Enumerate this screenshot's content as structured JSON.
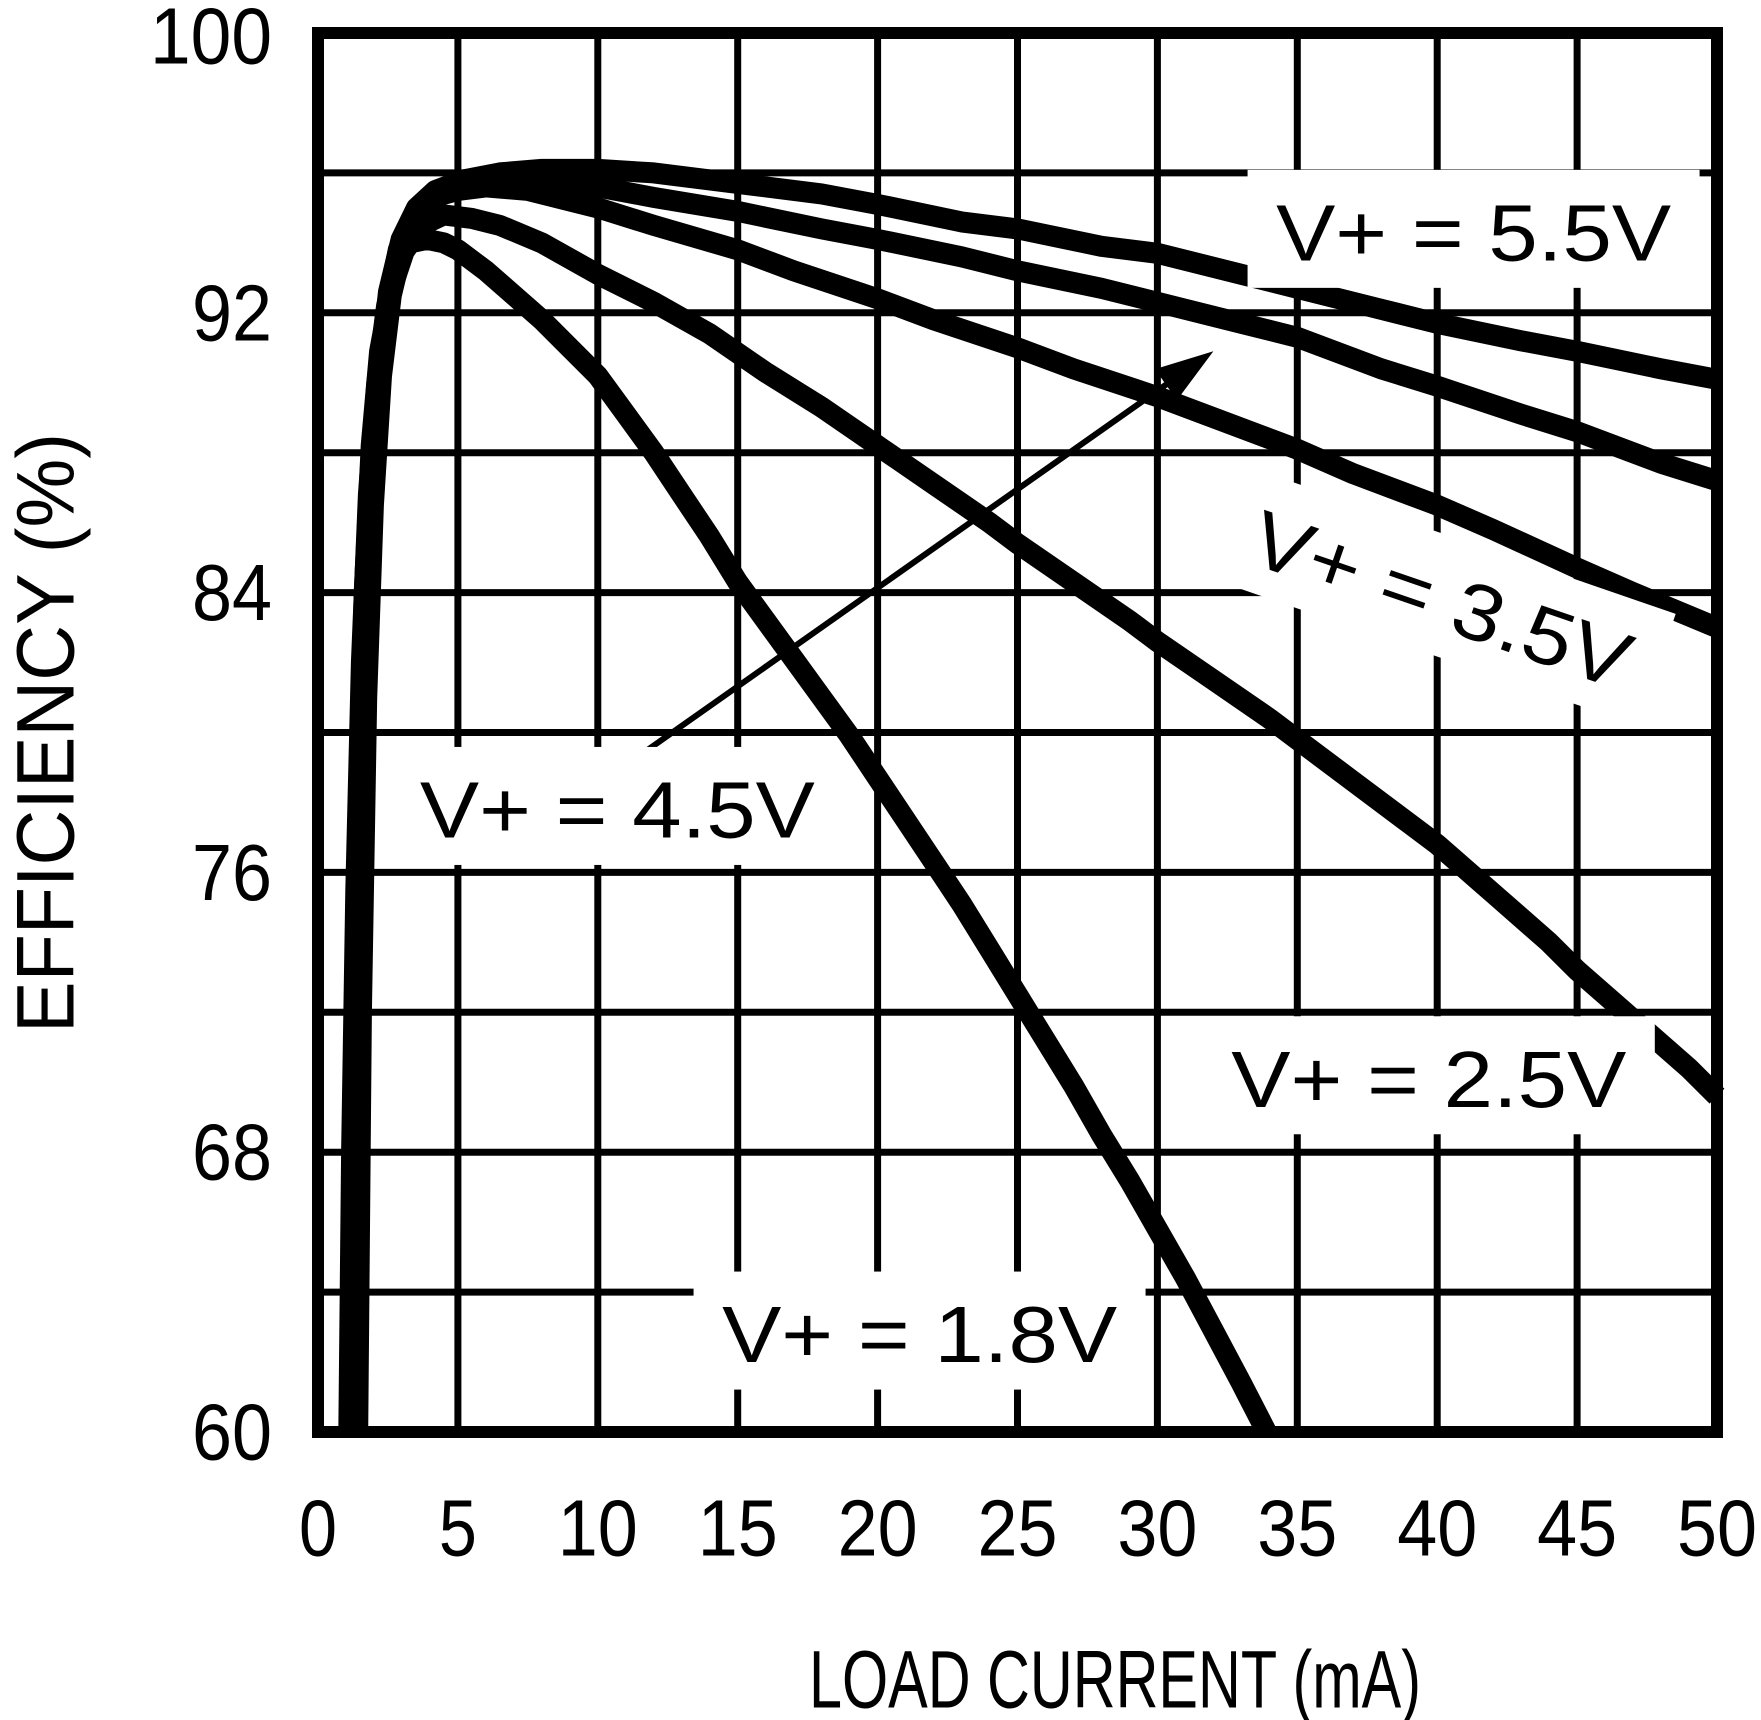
{
  "page": {
    "background": "#ffffff",
    "ink": "#000000"
  },
  "chart_data": {
    "type": "line",
    "title": "",
    "xlabel": "LOAD CURRENT (mA)",
    "ylabel": "EFFICIENCY (%)",
    "xlim": [
      0,
      50
    ],
    "ylim": [
      60,
      100
    ],
    "x_ticks": [
      0,
      5,
      10,
      15,
      20,
      25,
      30,
      35,
      40,
      45,
      50
    ],
    "x_grid_step": 5,
    "y_grid_step": 4,
    "y_tick_labels": [
      100,
      92,
      84,
      76,
      68,
      60
    ],
    "grid": "on",
    "legend_position": "inline-annotations",
    "series": [
      {
        "id": "v18",
        "name": "V+ = 1.8V",
        "points": [
          [
            1.1,
            60
          ],
          [
            1.2,
            68
          ],
          [
            1.35,
            75.5
          ],
          [
            1.55,
            82
          ],
          [
            1.8,
            86.8
          ],
          [
            2.1,
            90.0
          ],
          [
            2.45,
            92.2
          ],
          [
            2.85,
            93.5
          ],
          [
            3.3,
            94.0
          ],
          [
            3.9,
            94.1
          ],
          [
            4.5,
            94.0
          ],
          [
            5,
            93.8
          ],
          [
            6,
            93.2
          ],
          [
            7,
            92.5
          ],
          [
            8,
            91.8
          ],
          [
            9,
            91.0
          ],
          [
            10,
            90.2
          ],
          [
            11,
            89.1
          ],
          [
            12,
            88.0
          ],
          [
            13,
            86.8
          ],
          [
            14,
            85.6
          ],
          [
            15,
            84.3
          ],
          [
            16,
            83.2
          ],
          [
            17,
            82.1
          ],
          [
            18,
            81.0
          ],
          [
            19,
            79.9
          ],
          [
            20,
            78.7
          ],
          [
            21,
            77.5
          ],
          [
            22,
            76.3
          ],
          [
            23,
            75.1
          ],
          [
            24,
            73.8
          ],
          [
            25,
            72.5
          ],
          [
            26,
            71.2
          ],
          [
            27,
            69.9
          ],
          [
            28,
            68.5
          ],
          [
            29,
            67.2
          ],
          [
            30,
            65.8
          ],
          [
            31,
            64.4
          ],
          [
            32,
            62.9
          ],
          [
            33,
            61.4
          ],
          [
            33.9,
            60
          ]
        ]
      },
      {
        "id": "v25",
        "name": "V+ = 2.5V",
        "points": [
          [
            1.15,
            60
          ],
          [
            1.27,
            70
          ],
          [
            1.45,
            78
          ],
          [
            1.65,
            84
          ],
          [
            1.9,
            88.2
          ],
          [
            2.2,
            90.9
          ],
          [
            2.6,
            92.6
          ],
          [
            3.1,
            93.8
          ],
          [
            3.7,
            94.5
          ],
          [
            4.5,
            94.8
          ],
          [
            5.5,
            94.7
          ],
          [
            6.5,
            94.5
          ],
          [
            8,
            94.0
          ],
          [
            10,
            93.1
          ],
          [
            12,
            92.3
          ],
          [
            14,
            91.4
          ],
          [
            16,
            90.3
          ],
          [
            18,
            89.3
          ],
          [
            20,
            88.2
          ],
          [
            22,
            87.1
          ],
          [
            24,
            86.0
          ],
          [
            25,
            85.4
          ],
          [
            27,
            84.3
          ],
          [
            29,
            83.2
          ],
          [
            30,
            82.6
          ],
          [
            32,
            81.5
          ],
          [
            34,
            80.4
          ],
          [
            35,
            79.8
          ],
          [
            37,
            78.6
          ],
          [
            39,
            77.4
          ],
          [
            40,
            76.8
          ],
          [
            42,
            75.4
          ],
          [
            44,
            74.0
          ],
          [
            45,
            73.2
          ],
          [
            47,
            71.8
          ],
          [
            49,
            70.4
          ],
          [
            50,
            69.6
          ]
        ]
      },
      {
        "id": "v35",
        "name": "V+ = 3.5V",
        "points": [
          [
            1.22,
            60
          ],
          [
            1.35,
            71
          ],
          [
            1.55,
            80
          ],
          [
            1.78,
            85.5
          ],
          [
            2.07,
            89.3
          ],
          [
            2.42,
            92.0
          ],
          [
            2.87,
            93.8
          ],
          [
            3.42,
            94.8
          ],
          [
            4.1,
            95.3
          ],
          [
            5,
            95.5
          ],
          [
            6,
            95.6
          ],
          [
            7.5,
            95.5
          ],
          [
            9,
            95.2
          ],
          [
            10,
            95.0
          ],
          [
            12,
            94.5
          ],
          [
            15,
            93.8
          ],
          [
            17,
            93.2
          ],
          [
            20,
            92.4
          ],
          [
            22,
            91.8
          ],
          [
            25,
            91.0
          ],
          [
            27,
            90.4
          ],
          [
            30,
            89.6
          ],
          [
            32,
            89.0
          ],
          [
            35,
            88.1
          ],
          [
            37,
            87.4
          ],
          [
            40,
            86.5
          ],
          [
            42,
            85.8
          ],
          [
            45,
            84.7
          ],
          [
            47,
            84.0
          ],
          [
            50,
            83.0
          ]
        ]
      },
      {
        "id": "v45",
        "name": "V+ = 4.5V",
        "points": [
          [
            1.32,
            60
          ],
          [
            1.45,
            71
          ],
          [
            1.64,
            80
          ],
          [
            1.88,
            86
          ],
          [
            2.17,
            90.0
          ],
          [
            2.52,
            92.6
          ],
          [
            2.97,
            94.1
          ],
          [
            3.52,
            95.0
          ],
          [
            4.2,
            95.5
          ],
          [
            5.2,
            95.8
          ],
          [
            6.5,
            95.9
          ],
          [
            8,
            95.8
          ],
          [
            10,
            95.6
          ],
          [
            12,
            95.3
          ],
          [
            15,
            94.9
          ],
          [
            18,
            94.4
          ],
          [
            20,
            94.1
          ],
          [
            23,
            93.6
          ],
          [
            25,
            93.2
          ],
          [
            28,
            92.7
          ],
          [
            30,
            92.3
          ],
          [
            33,
            91.7
          ],
          [
            35,
            91.3
          ],
          [
            38,
            90.4
          ],
          [
            40,
            89.9
          ],
          [
            43,
            89.1
          ],
          [
            45,
            88.6
          ],
          [
            48,
            87.7
          ],
          [
            50,
            87.2
          ]
        ]
      },
      {
        "id": "v55",
        "name": "V+ = 5.5V",
        "points": [
          [
            1.42,
            60
          ],
          [
            1.55,
            72
          ],
          [
            1.74,
            81
          ],
          [
            1.98,
            86.5
          ],
          [
            2.27,
            90.2
          ],
          [
            2.62,
            92.5
          ],
          [
            3.07,
            94.0
          ],
          [
            3.62,
            94.9
          ],
          [
            4.3,
            95.4
          ],
          [
            5.2,
            95.8
          ],
          [
            6.5,
            96.0
          ],
          [
            8,
            96.1
          ],
          [
            10,
            96.1
          ],
          [
            12,
            96.0
          ],
          [
            15,
            95.7
          ],
          [
            18,
            95.4
          ],
          [
            20,
            95.1
          ],
          [
            23,
            94.6
          ],
          [
            25,
            94.4
          ],
          [
            28,
            93.9
          ],
          [
            30,
            93.7
          ],
          [
            33,
            93.1
          ],
          [
            35,
            92.7
          ],
          [
            38,
            92.1
          ],
          [
            40,
            91.7
          ],
          [
            43,
            91.2
          ],
          [
            45,
            90.9
          ],
          [
            48,
            90.4
          ],
          [
            50,
            90.1
          ]
        ]
      }
    ],
    "annotations": [
      {
        "id": "v55",
        "text": "V+ = 5.5V",
        "x": 41.3,
        "y": 94.4,
        "angle": 0
      },
      {
        "id": "v35",
        "text": "V+ = 3.5V",
        "x": 40.2,
        "y": 83.9,
        "angle": 19
      },
      {
        "id": "v45",
        "text": "V+ = 4.5V",
        "x": 10.7,
        "y": 77.9,
        "angle": 0,
        "arrow": {
          "from_x": 11.6,
          "from_y": 79.4,
          "to_x": 32.0,
          "to_y": 90.9
        }
      },
      {
        "id": "v25",
        "text": "V+ = 2.5V",
        "x": 39.7,
        "y": 70.2,
        "angle": 0
      },
      {
        "id": "v18",
        "text": "V+ = 1.8V",
        "x": 21.5,
        "y": 62.9,
        "angle": 0
      }
    ]
  }
}
